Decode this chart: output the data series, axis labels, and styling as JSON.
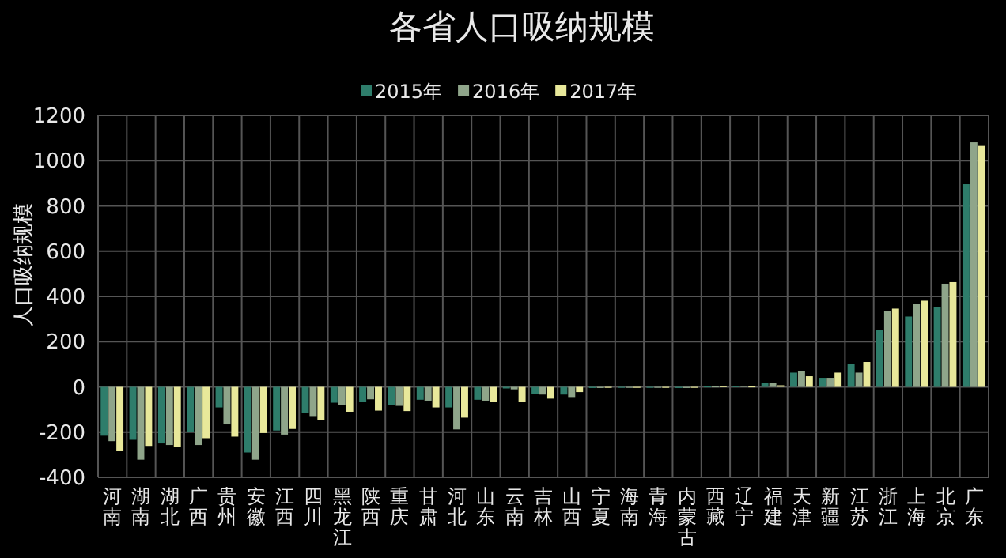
{
  "chart_data": {
    "type": "bar",
    "title": "各省人口吸纳规模",
    "ylabel": "人口吸纳规模",
    "categories": [
      "河南",
      "湖南",
      "湖北",
      "广西",
      "贵州",
      "安徽",
      "江西",
      "四川",
      "黑龙江",
      "陕西",
      "重庆",
      "甘肃",
      "河北",
      "山东",
      "云南",
      "吉林",
      "山西",
      "宁夏",
      "海南",
      "青海",
      "内蒙古",
      "西藏",
      "辽宁",
      "福建",
      "天津",
      "新疆",
      "江苏",
      "浙江",
      "上海",
      "北京",
      "广东"
    ],
    "series": [
      {
        "name": "2015年",
        "color": "#2e7d6b",
        "values": [
          -216,
          -234,
          -250,
          -200,
          -91,
          -290,
          -193,
          -114,
          -70,
          -65,
          -80,
          -57,
          -91,
          -57,
          -7,
          -30,
          -34,
          -5,
          -3,
          -3,
          -5,
          2,
          3,
          16,
          63,
          40,
          100,
          253,
          311,
          353,
          896
        ]
      },
      {
        "name": "2016年",
        "color": "#8fa58a",
        "values": [
          -240,
          -322,
          -257,
          -257,
          -166,
          -322,
          -211,
          -129,
          -80,
          -55,
          -84,
          -61,
          -188,
          -61,
          -11,
          -34,
          -45,
          -5,
          -3,
          -2,
          -5,
          2,
          5,
          16,
          70,
          40,
          63,
          335,
          367,
          456,
          1081
        ]
      },
      {
        "name": "2017年",
        "color": "#e8e89a",
        "values": [
          -284,
          -261,
          -266,
          -227,
          -220,
          -204,
          -186,
          -148,
          -110,
          -105,
          -107,
          -91,
          -136,
          -68,
          -68,
          -52,
          -23,
          -3,
          -3,
          -4,
          -4,
          3,
          2,
          7,
          47,
          63,
          110,
          346,
          381,
          463,
          1065
        ]
      }
    ],
    "ylim": [
      -400,
      1200
    ],
    "yticks": [
      -400,
      -200,
      0,
      200,
      400,
      600,
      800,
      1000,
      1200
    ],
    "grid": true,
    "legend": "top"
  }
}
